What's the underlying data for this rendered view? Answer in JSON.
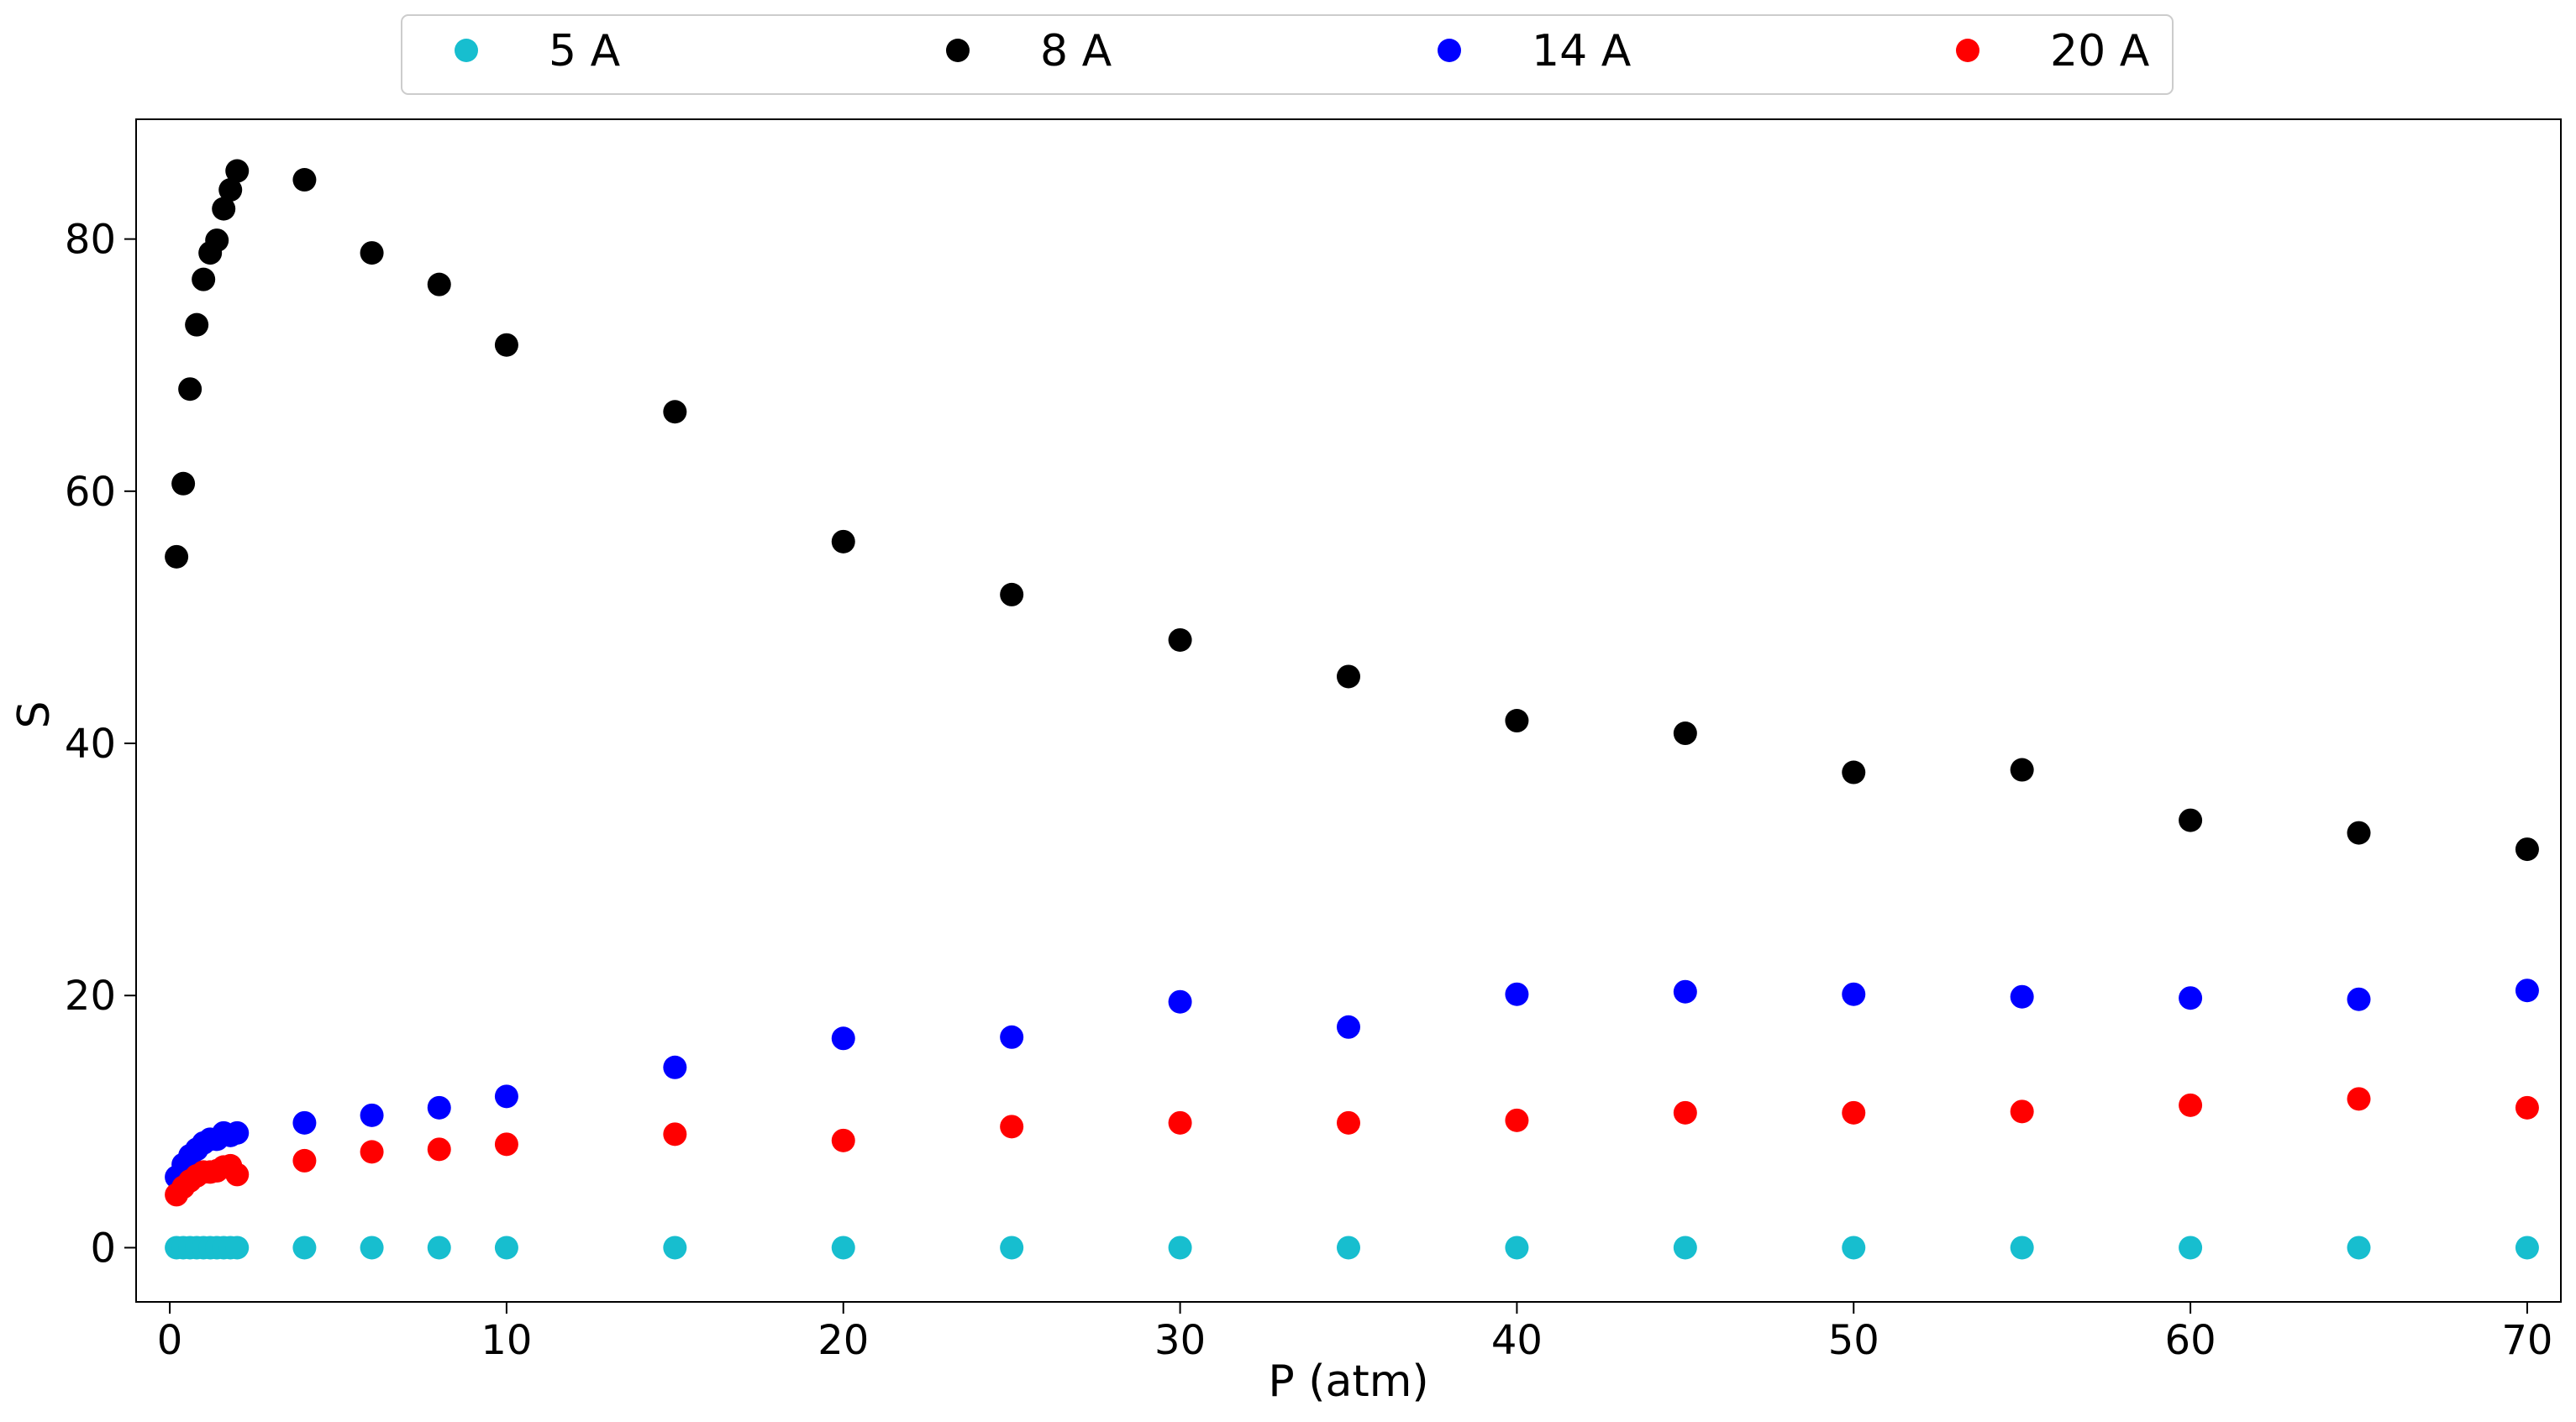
{
  "chart_data": {
    "type": "scatter",
    "xlabel": "P (atm)",
    "ylabel": "S",
    "xlim": [
      -1,
      71
    ],
    "ylim": [
      -4.3,
      89.5
    ],
    "xticks": [
      0,
      10,
      20,
      30,
      40,
      50,
      60,
      70
    ],
    "yticks": [
      0,
      20,
      40,
      60,
      80
    ],
    "grid": false,
    "legend_position": "top, horizontal, above plot",
    "x": [
      0.2,
      0.4,
      0.6,
      0.8,
      1.0,
      1.2,
      1.4,
      1.6,
      1.8,
      2.0,
      4,
      6,
      8,
      10,
      15,
      20,
      25,
      30,
      35,
      40,
      45,
      50,
      55,
      60,
      65,
      70
    ],
    "series": [
      {
        "name": "5 A",
        "color": "#17BECF",
        "values": [
          0,
          0,
          0,
          0,
          0,
          0,
          0,
          0,
          0,
          0,
          0,
          0,
          0,
          0,
          0,
          0,
          0,
          0,
          0,
          0,
          0,
          0,
          0,
          0,
          0,
          0
        ]
      },
      {
        "name": "8 A",
        "color": "#000000",
        "values": [
          54.8,
          60.6,
          68.1,
          73.2,
          76.8,
          78.9,
          79.9,
          82.4,
          83.9,
          85.4,
          84.7,
          78.9,
          76.4,
          71.6,
          66.3,
          56.0,
          51.8,
          48.2,
          45.3,
          41.8,
          40.8,
          37.7,
          37.9,
          33.9,
          32.9,
          31.6
        ]
      },
      {
        "name": "14 A",
        "color": "#0000FF",
        "values": [
          5.6,
          6.6,
          7.3,
          7.8,
          8.3,
          8.6,
          8.6,
          9.1,
          8.9,
          9.1,
          9.9,
          10.5,
          11.1,
          12.0,
          14.3,
          16.6,
          16.7,
          19.5,
          17.5,
          20.1,
          20.3,
          20.1,
          19.9,
          19.8,
          19.7,
          20.4
        ]
      },
      {
        "name": "20 A",
        "color": "#FF0000",
        "values": [
          4.2,
          4.8,
          5.3,
          5.7,
          6.0,
          6.0,
          6.1,
          6.4,
          6.5,
          5.8,
          6.9,
          7.6,
          7.8,
          8.2,
          9.0,
          8.5,
          9.6,
          9.9,
          9.9,
          10.1,
          10.7,
          10.7,
          10.8,
          11.3,
          11.8,
          11.1
        ]
      }
    ]
  }
}
